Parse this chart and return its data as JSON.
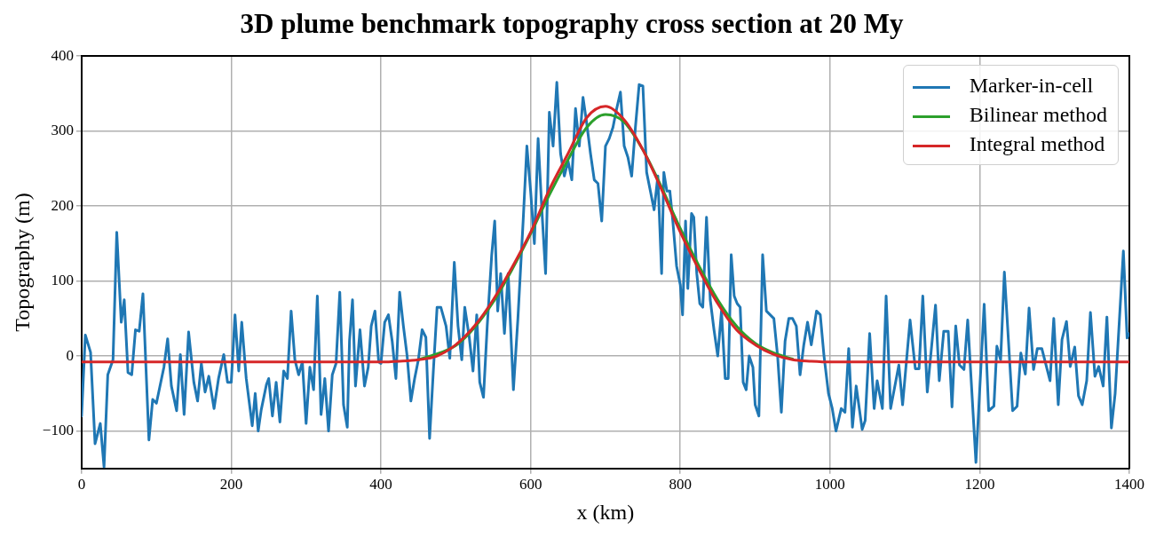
{
  "chart_data": {
    "type": "line",
    "title": "3D plume benchmark topography cross section at 20 My",
    "xlabel": "x (km)",
    "ylabel": "Topography (m)",
    "xlim": [
      0,
      1400
    ],
    "xticks": [
      0,
      200,
      400,
      600,
      800,
      1000,
      1200,
      1400
    ],
    "ylim": [
      -150,
      400
    ],
    "yticks": [
      {
        "value": -100,
        "label": "−100"
      },
      0,
      100,
      200,
      300,
      400
    ],
    "grid": true,
    "legend": "top right",
    "marker": "none",
    "line_style": "solid",
    "series": [
      {
        "name": "Marker-in-cell",
        "color": "#1f77b4",
        "x": [
          0,
          5,
          12,
          18,
          25,
          30,
          35,
          42,
          47,
          53,
          57,
          62,
          67,
          72,
          77,
          82,
          90,
          95,
          100,
          110,
          115,
          120,
          127,
          132,
          137,
          143,
          150,
          155,
          160,
          165,
          170,
          177,
          183,
          190,
          195,
          200,
          205,
          210,
          214,
          220,
          228,
          232,
          236,
          240,
          247,
          250,
          255,
          260,
          265,
          270,
          275,
          280,
          285,
          290,
          295,
          300,
          305,
          310,
          315,
          320,
          325,
          330,
          335,
          340,
          345,
          350,
          355,
          358,
          362,
          366,
          372,
          378,
          383,
          387,
          392,
          397,
          400,
          405,
          410,
          415,
          420,
          425,
          430,
          435,
          440,
          445,
          450,
          455,
          460,
          465,
          470,
          475,
          480,
          487,
          492,
          498,
          503,
          508,
          512,
          518,
          523,
          528,
          532,
          537,
          542,
          548,
          552,
          556,
          560,
          565,
          570,
          577,
          583,
          590,
          595,
          600,
          605,
          610,
          615,
          620,
          625,
          630,
          635,
          640,
          645,
          650,
          655,
          660,
          665,
          670,
          675,
          680,
          685,
          690,
          695,
          700,
          705,
          710,
          715,
          720,
          725,
          730,
          735,
          740,
          745,
          750,
          755,
          760,
          765,
          770,
          775,
          778,
          782,
          786,
          790,
          795,
          800,
          803,
          807,
          810,
          815,
          818,
          822,
          826,
          830,
          835,
          840,
          845,
          850,
          855,
          860,
          864,
          868,
          872,
          876,
          880,
          884,
          888,
          892,
          897,
          900,
          905,
          910,
          915,
          920,
          925,
          930,
          935,
          940,
          945,
          950,
          955,
          960,
          965,
          970,
          975,
          982,
          987,
          992,
          998,
          1003,
          1008,
          1015,
          1020,
          1025,
          1030,
          1035,
          1043,
          1047,
          1053,
          1059,
          1063,
          1070,
          1075,
          1081,
          1092,
          1097,
          1107,
          1114,
          1119,
          1124,
          1130,
          1141,
          1146,
          1152,
          1158,
          1163,
          1168,
          1173,
          1179,
          1184,
          1195,
          1206,
          1212,
          1219,
          1223,
          1228,
          1233,
          1244,
          1250,
          1255,
          1261,
          1266,
          1272,
          1277,
          1283,
          1294,
          1299,
          1305,
          1310,
          1316,
          1321,
          1327,
          1332,
          1337,
          1343,
          1348,
          1354,
          1359,
          1365,
          1370,
          1376,
          1381,
          1392,
          1397,
          1400
        ],
        "values": [
          -80,
          28,
          5,
          -117,
          -90,
          -148,
          -25,
          -5,
          165,
          45,
          75,
          -22,
          -25,
          35,
          33,
          83,
          -112,
          -58,
          -63,
          -15,
          23,
          -40,
          -73,
          2,
          -78,
          32,
          -35,
          -60,
          -10,
          -48,
          -27,
          -70,
          -30,
          2,
          -35,
          -35,
          55,
          -20,
          45,
          -30,
          -93,
          -50,
          -100,
          -72,
          -38,
          -30,
          -80,
          -35,
          -88,
          -20,
          -30,
          60,
          -5,
          -25,
          -8,
          -90,
          -15,
          -45,
          80,
          -78,
          -30,
          -100,
          -25,
          -10,
          85,
          -65,
          -95,
          20,
          75,
          -40,
          35,
          -40,
          -15,
          40,
          60,
          -8,
          -10,
          45,
          55,
          20,
          -30,
          85,
          40,
          0,
          -60,
          -30,
          -5,
          35,
          25,
          -110,
          -20,
          65,
          65,
          40,
          -3,
          125,
          40,
          -5,
          65,
          25,
          -20,
          55,
          -35,
          -55,
          40,
          135,
          180,
          60,
          110,
          30,
          110,
          -45,
          50,
          180,
          280,
          220,
          150,
          290,
          195,
          110,
          325,
          280,
          365,
          270,
          240,
          260,
          235,
          330,
          280,
          345,
          310,
          270,
          235,
          230,
          180,
          280,
          290,
          305,
          330,
          352,
          280,
          265,
          240,
          305,
          362,
          360,
          245,
          220,
          195,
          240,
          110,
          245,
          220,
          220,
          180,
          120,
          95,
          55,
          180,
          90,
          190,
          185,
          110,
          70,
          65,
          185,
          75,
          35,
          0,
          60,
          -30,
          -30,
          135,
          80,
          70,
          65,
          -35,
          -45,
          0,
          -15,
          -65,
          -80,
          135,
          60,
          55,
          50,
          0,
          -75,
          20,
          50,
          50,
          40,
          -25,
          15,
          45,
          15,
          60,
          55,
          0,
          -50,
          -70,
          -100,
          -70,
          -75,
          10,
          -95,
          -40,
          -98,
          -86,
          30,
          -70,
          -33,
          -70,
          80,
          -70,
          -12,
          -65,
          48,
          -17,
          -17,
          80,
          -48,
          68,
          -33,
          33,
          33,
          -68,
          40,
          -12,
          -18,
          48,
          -142,
          69,
          -73,
          -67,
          13,
          -5,
          112,
          -73,
          -67,
          4,
          -24,
          64,
          -18,
          10,
          10,
          -33,
          50,
          -65,
          22,
          46,
          -14,
          12,
          -53,
          -65,
          -33,
          58,
          -27,
          -14,
          -40,
          52,
          -96,
          -50,
          140,
          24,
          30
        ]
      },
      {
        "name": "Bilinear method",
        "color": "#2ca02c",
        "x": [
          450,
          500,
          525,
          550,
          575,
          600,
          625,
          650,
          675,
          700,
          725,
          750,
          775,
          800,
          825,
          850,
          875,
          900,
          925,
          950
        ],
        "values": [
          -5,
          14,
          38,
          72,
          115,
          163,
          215,
          262,
          305,
          322,
          312,
          275,
          225,
          170,
          120,
          75,
          40,
          17,
          4,
          -4
        ]
      },
      {
        "name": "Integral method",
        "color": "#d62728",
        "x": [
          0,
          400,
          425,
          450,
          475,
          500,
          525,
          550,
          575,
          600,
          625,
          650,
          675,
          700,
          725,
          750,
          775,
          800,
          825,
          850,
          875,
          900,
          925,
          950,
          975,
          1000,
          1400
        ],
        "values": [
          -8,
          -8,
          -7,
          -5,
          0,
          15,
          40,
          75,
          118,
          165,
          222,
          270,
          318,
          333,
          315,
          275,
          222,
          165,
          115,
          70,
          35,
          15,
          2,
          -5,
          -7,
          -8,
          -8
        ]
      }
    ]
  }
}
